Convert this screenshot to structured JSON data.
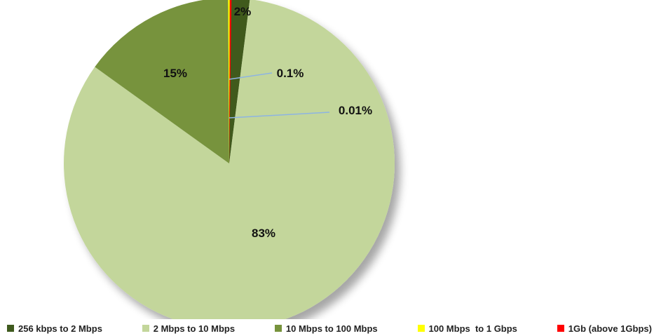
{
  "chart_data": {
    "type": "pie",
    "title": "",
    "slices": [
      {
        "name": "256 kbps to 2 Mbps",
        "value": 2,
        "label": "2%",
        "color": "#3f5a1e"
      },
      {
        "name": "2 Mbps to 10 Mbps",
        "value": 83,
        "label": "83%",
        "color": "#c3d69b"
      },
      {
        "name": "10 Mbps to 100 Mbps",
        "value": 15,
        "label": "15%",
        "color": "#77933c"
      },
      {
        "name": "100 Mbps  to 1 Gbps",
        "value": 0.1,
        "label": "0.1%",
        "color": "#ffff00"
      },
      {
        "name": "1Gb (above 1Gbps)",
        "value": 0.01,
        "label": "0.01%",
        "color": "#ff0000"
      }
    ],
    "legend_position": "bottom",
    "leader_line_color": "#8db4e2"
  }
}
